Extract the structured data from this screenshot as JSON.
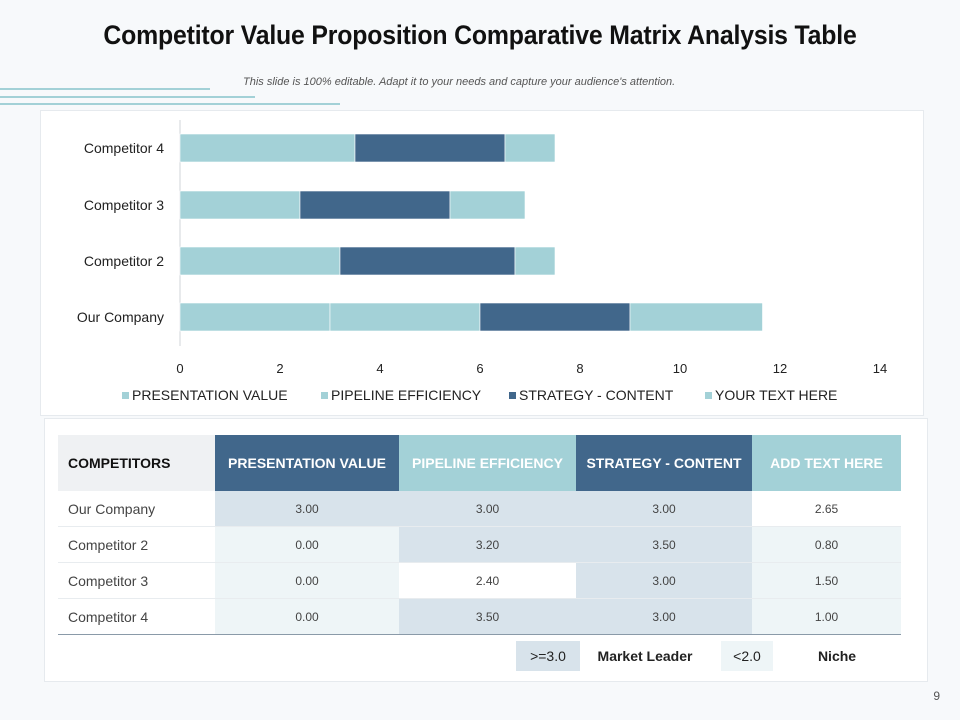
{
  "slide": {
    "title": "Competitor Value Proposition Comparative Matrix Analysis Table",
    "subtitle": "This slide is 100% editable. Adapt it to your needs and capture your audience's attention.",
    "page_number": "9"
  },
  "colors": {
    "light": "#a3d1d7",
    "dark": "#41678b",
    "decor": "#a3d1d7"
  },
  "chart_data": {
    "type": "bar",
    "orientation": "horizontal",
    "stacked": true,
    "categories": [
      "Our Company",
      "Competitor 2",
      "Competitor 3",
      "Competitor 4"
    ],
    "series": [
      {
        "name": "PRESENTATION VALUE",
        "color": "#a3d1d7",
        "values": [
          3.0,
          0.0,
          0.0,
          0.0
        ]
      },
      {
        "name": "PIPELINE EFFICIENCY",
        "color": "#a3d1d7",
        "values": [
          3.0,
          3.2,
          2.4,
          3.5
        ]
      },
      {
        "name": "STRATEGY - CONTENT",
        "color": "#41678b",
        "values": [
          3.0,
          3.5,
          3.0,
          3.0
        ]
      },
      {
        "name": "YOUR TEXT HERE",
        "color": "#a3d1d7",
        "values": [
          2.65,
          0.8,
          1.5,
          1.0
        ]
      }
    ],
    "xlim": [
      0,
      14
    ],
    "xticks": [
      "0",
      "2",
      "4",
      "6",
      "8",
      "10",
      "12",
      "14"
    ],
    "legend": "bottom",
    "grid": false
  },
  "table": {
    "headers": [
      {
        "label": "COMPETITORS",
        "color": "#eff1f3"
      },
      {
        "label": "PRESENTATION VALUE",
        "color": "#41678b"
      },
      {
        "label": "PIPELINE EFFICIENCY",
        "color": "#a3d1d7"
      },
      {
        "label": "STRATEGY - CONTENT",
        "color": "#41678b"
      },
      {
        "label": "ADD TEXT HERE",
        "color": "#a3d1d7"
      }
    ],
    "rows": [
      {
        "name": "Our Company",
        "values": [
          "3.00",
          "3.00",
          "3.00",
          "2.65"
        ]
      },
      {
        "name": "Competitor 2",
        "values": [
          "0.00",
          "3.20",
          "3.50",
          "0.80"
        ]
      },
      {
        "name": "Competitor 3",
        "values": [
          "0.00",
          "2.40",
          "3.00",
          "1.50"
        ]
      },
      {
        "name": "Competitor 4",
        "values": [
          "0.00",
          "3.50",
          "3.00",
          "1.00"
        ]
      }
    ],
    "cell_colors": {
      "high": "#d8e3eb",
      "low": "#eef5f7",
      "neutral": "#ffffff"
    }
  },
  "legend_key": {
    "high_label": ">=3.0",
    "high_text": "Market Leader",
    "low_label": "<2.0",
    "low_text": "Niche"
  }
}
